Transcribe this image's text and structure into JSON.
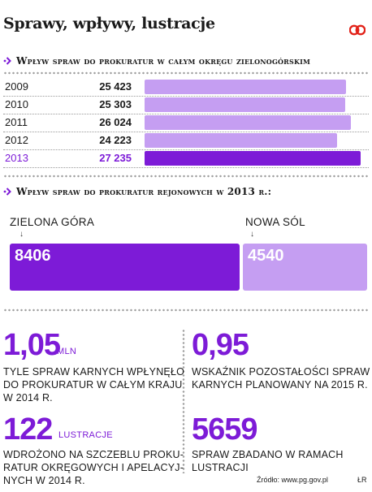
{
  "title": "Sprawy, wpływy, lustracje",
  "logo_text": "CP",
  "colors": {
    "accent": "#7d1bd7",
    "bar_light": "#c59ef2",
    "bar_mid": "#a672e8"
  },
  "chart_data": [
    {
      "type": "bar",
      "title": "Wpływ spraw do prokuratur w całym okręgu zielonogórskim",
      "categories": [
        "2009",
        "2010",
        "2011",
        "2012",
        "2013"
      ],
      "values": [
        25423,
        25303,
        26024,
        24223,
        27235
      ],
      "value_labels": [
        "25 423",
        "25 303",
        "26 024",
        "24 223",
        "27 235"
      ],
      "highlight": "2013",
      "orientation": "horizontal",
      "xlim": [
        0,
        27235
      ]
    },
    {
      "type": "bar",
      "title": "Wpływ spraw do prokuratur rejonowych w 2013 r.:",
      "categories": [
        "ZIELONA GÓRA",
        "NOWA SÓL"
      ],
      "values": [
        8406,
        4540
      ],
      "value_labels": [
        "8406",
        "4540"
      ],
      "orientation": "stacked-horizontal"
    }
  ],
  "facts": [
    {
      "number": "1,05",
      "unit": "MLN",
      "lines": [
        "TYLE SPRAW KARNYCH WPŁYNĘŁO",
        "DO PROKURATUR W CAŁYM KRAJU",
        "W 2014 R."
      ]
    },
    {
      "number": "0,95",
      "unit": "",
      "lines": [
        "WSKAŹNIK POZOSTAŁOŚCI SPRAW",
        "KARNYCH PLANOWANY NA 2015 R."
      ]
    },
    {
      "number": "122",
      "unit": "LUSTRACJE",
      "lines": [
        "WDROŻONO NA SZCZEBLU PROKU-",
        "RATUR OKRĘGOWYCH I APELACYJ-",
        "NYCH W 2014 R."
      ]
    },
    {
      "number": "5659",
      "unit": "",
      "lines": [
        "SPRAW ZBADANO W RAMACH",
        "LUSTRACJI"
      ]
    }
  ],
  "source": "Źródło: www.pg.gov.pl",
  "author": "ŁR"
}
